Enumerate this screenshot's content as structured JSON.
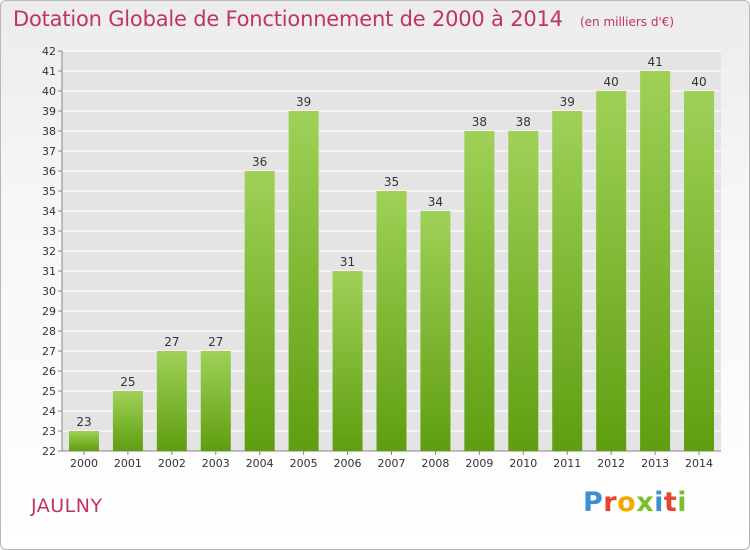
{
  "title": "Dotation Globale de Fonctionnement de 2000 à 2014",
  "subtitle": "(en milliers d'€)",
  "commune": "JAULNY",
  "brand": {
    "letters": [
      "P",
      "r",
      "o",
      "x",
      "i",
      "t",
      "i"
    ],
    "colors": [
      "#3c8fd1",
      "#e8432f",
      "#f2a900",
      "#7bbf2a",
      "#3c8fd1",
      "#e8432f",
      "#7bbf2a"
    ]
  },
  "colors": {
    "bar_top": "#9fd157",
    "bar_bottom": "#5f9e10",
    "plot_bg": "#e4e4e4",
    "grid": "#ffffff",
    "title": "#c0345f"
  },
  "chart_data": {
    "type": "bar",
    "categories": [
      "2000",
      "2001",
      "2002",
      "2003",
      "2004",
      "2005",
      "2006",
      "2007",
      "2008",
      "2009",
      "2010",
      "2011",
      "2012",
      "2013",
      "2014"
    ],
    "values": [
      23,
      25,
      27,
      27,
      36,
      39,
      31,
      35,
      34,
      38,
      38,
      39,
      40,
      41,
      40
    ],
    "data_labels": [
      "23",
      "25",
      "27",
      "27",
      "36",
      "39",
      "31",
      "35",
      "34",
      "38",
      "38",
      "39",
      "40",
      "41",
      "40"
    ],
    "ylim": [
      22,
      42
    ],
    "yticks": [
      22,
      23,
      24,
      25,
      26,
      27,
      28,
      29,
      30,
      31,
      32,
      33,
      34,
      35,
      36,
      37,
      38,
      39,
      40,
      41,
      42
    ],
    "grid": true,
    "xlabel": "",
    "ylabel": ""
  }
}
